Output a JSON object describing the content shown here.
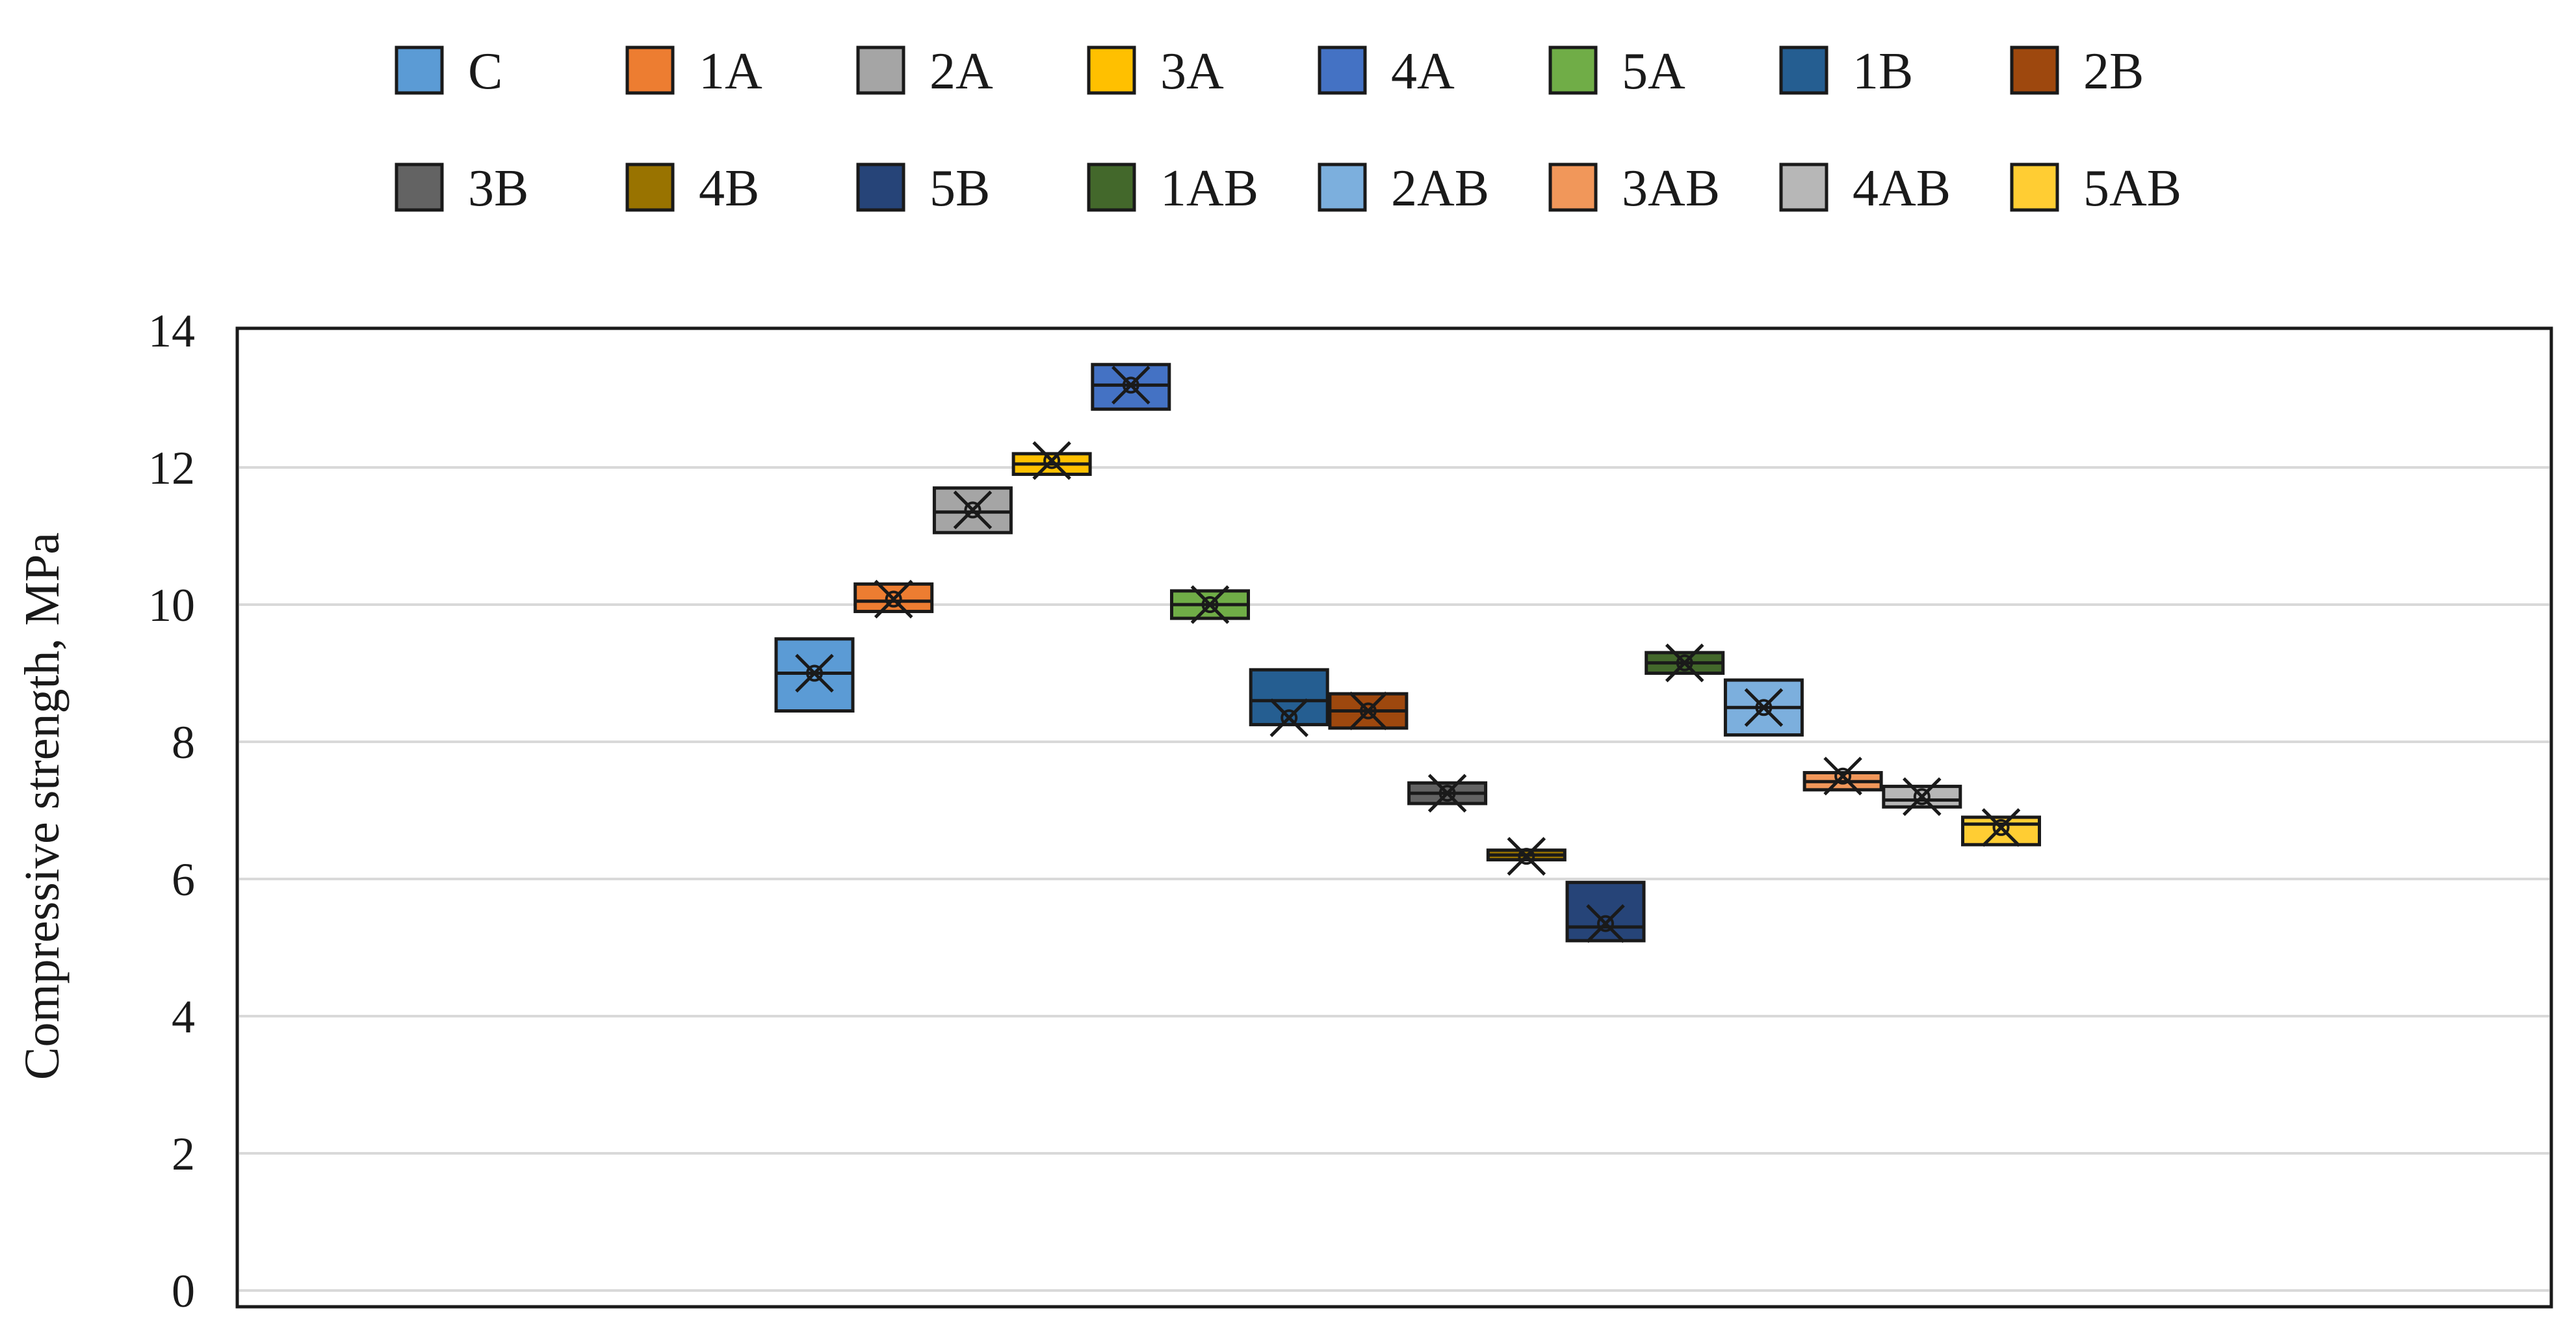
{
  "chart_data": {
    "type": "box",
    "title": "",
    "xlabel": "",
    "ylabel": "Compressive strength, MPa",
    "ylim": [
      0,
      14
    ],
    "yticks": [
      0,
      2,
      4,
      6,
      8,
      10,
      12,
      14
    ],
    "grid": true,
    "legend_position": "top",
    "series": [
      {
        "name": "C",
        "color": "#5B9BD5",
        "q1": 8.45,
        "q3": 9.5,
        "median": 9.0,
        "mean": 9.0
      },
      {
        "name": "1A",
        "color": "#ED7D31",
        "q1": 9.9,
        "q3": 10.3,
        "median": 10.05,
        "mean": 10.08
      },
      {
        "name": "2A",
        "color": "#A5A5A5",
        "q1": 11.05,
        "q3": 11.7,
        "median": 11.35,
        "mean": 11.38
      },
      {
        "name": "3A",
        "color": "#FFC000",
        "q1": 11.9,
        "q3": 12.2,
        "median": 12.05,
        "mean": 12.1
      },
      {
        "name": "4A",
        "color": "#4472C4",
        "q1": 12.85,
        "q3": 13.5,
        "median": 13.2,
        "mean": 13.2
      },
      {
        "name": "5A",
        "color": "#70AD47",
        "q1": 9.8,
        "q3": 10.2,
        "median": 10.0,
        "mean": 10.0
      },
      {
        "name": "1B",
        "color": "#255E91",
        "q1": 8.25,
        "q3": 9.05,
        "median": 8.6,
        "mean": 8.35
      },
      {
        "name": "2B",
        "color": "#9E480E",
        "q1": 8.2,
        "q3": 8.7,
        "median": 8.45,
        "mean": 8.45
      },
      {
        "name": "3B",
        "color": "#636363",
        "q1": 7.1,
        "q3": 7.4,
        "median": 7.25,
        "mean": 7.25
      },
      {
        "name": "4B",
        "color": "#997300",
        "q1": 6.28,
        "q3": 6.42,
        "median": 6.35,
        "mean": 6.33
      },
      {
        "name": "5B",
        "color": "#264478",
        "q1": 5.1,
        "q3": 5.95,
        "median": 5.3,
        "mean": 5.35
      },
      {
        "name": "1AB",
        "color": "#43682B",
        "q1": 9.0,
        "q3": 9.3,
        "median": 9.15,
        "mean": 9.15
      },
      {
        "name": "2AB",
        "color": "#7CAFDD",
        "q1": 8.1,
        "q3": 8.9,
        "median": 8.5,
        "mean": 8.5
      },
      {
        "name": "3AB",
        "color": "#F1975A",
        "q1": 7.3,
        "q3": 7.55,
        "median": 7.42,
        "mean": 7.5
      },
      {
        "name": "4AB",
        "color": "#B7B7B7",
        "q1": 7.05,
        "q3": 7.35,
        "median": 7.15,
        "mean": 7.2
      },
      {
        "name": "5AB",
        "color": "#FFCD33",
        "q1": 6.5,
        "q3": 6.9,
        "median": 6.8,
        "mean": 6.75
      }
    ]
  }
}
